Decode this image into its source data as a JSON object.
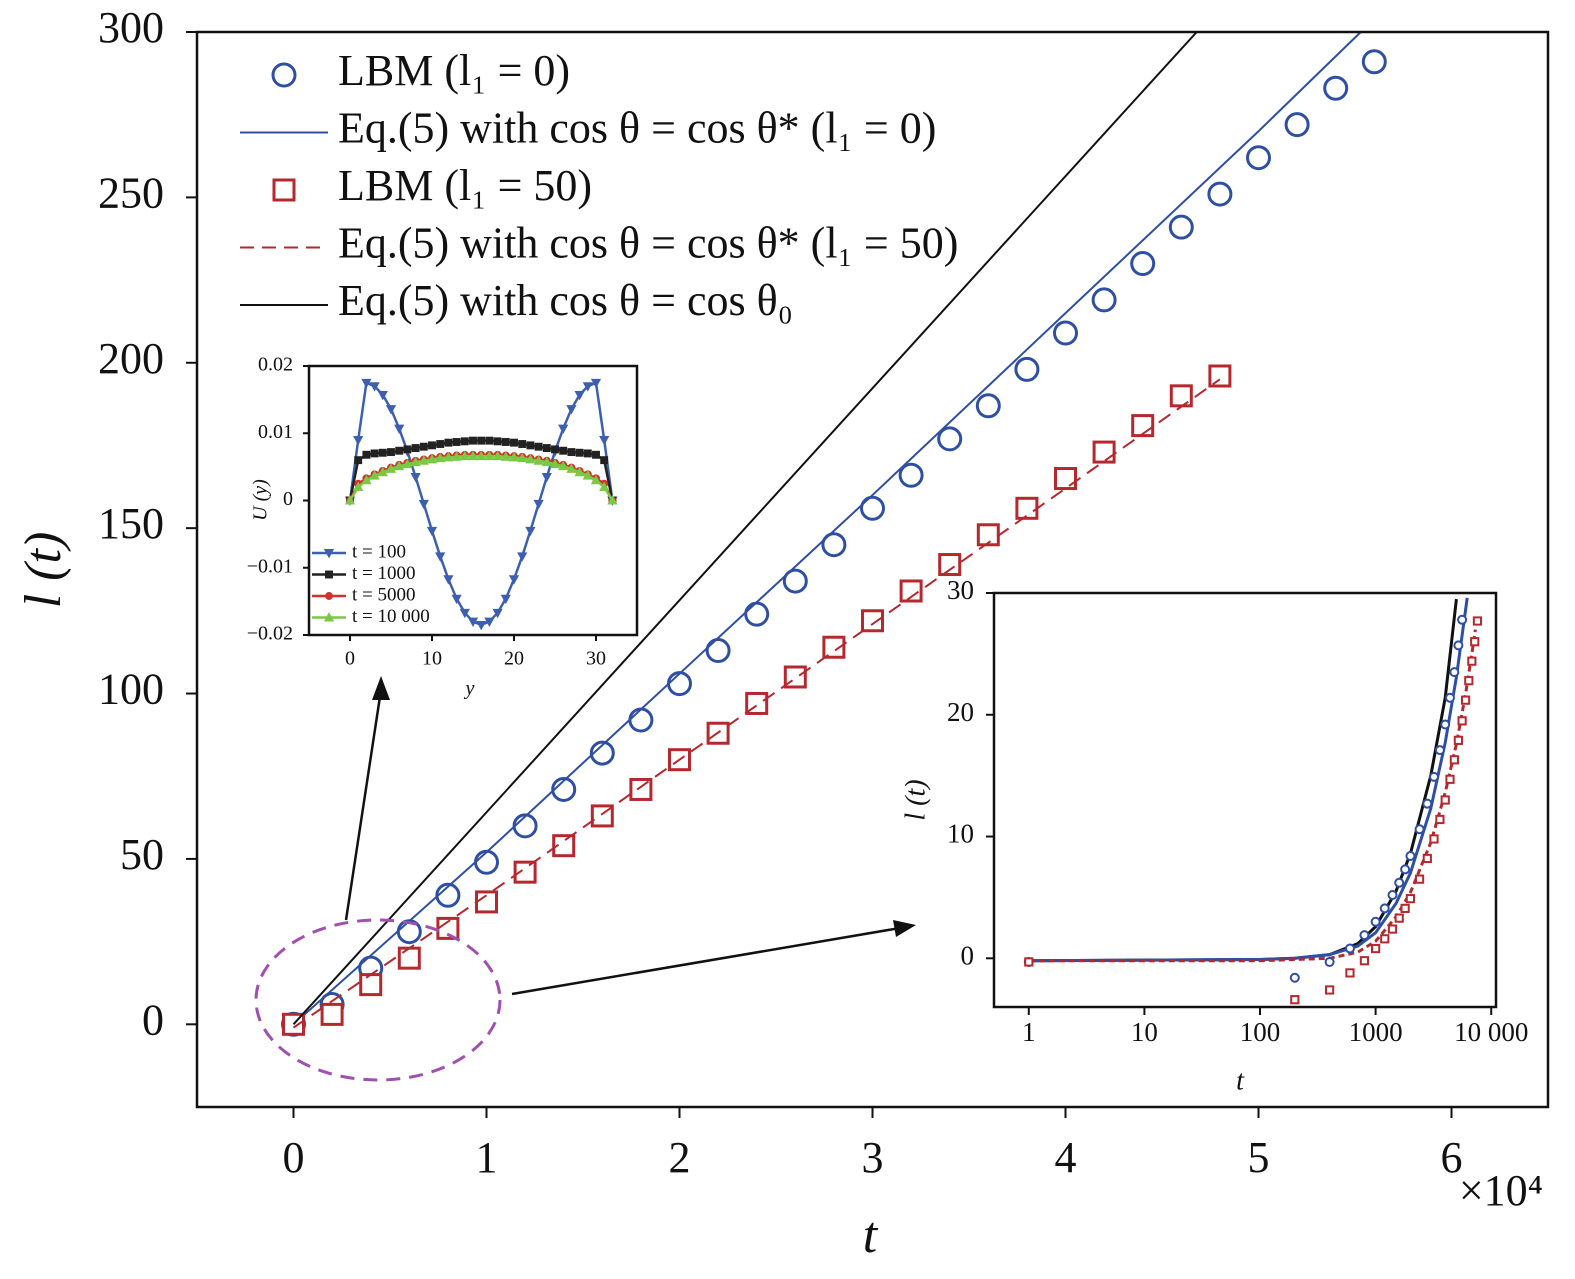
{
  "chart_data": [
    {
      "type": "line",
      "xlabel": "t",
      "ylabel": "l (t)",
      "x_multiplier": "×10⁴",
      "xlim": [
        -0.5,
        6.5
      ],
      "ylim": [
        -25,
        300
      ],
      "xticks": [
        0,
        1,
        2,
        3,
        4,
        5,
        6
      ],
      "yticks": [
        0,
        50,
        100,
        150,
        200,
        250,
        300
      ],
      "series": [
        {
          "name": "LBM (l₁ = 0)",
          "color": "#2e4fa3",
          "mode": "markers",
          "marker": "circle",
          "x": [
            0,
            0.2,
            0.4,
            0.6,
            0.8,
            1.0,
            1.2,
            1.4,
            1.6,
            1.8,
            2.0,
            2.2,
            2.4,
            2.6,
            2.8,
            3.0,
            3.2,
            3.4,
            3.6,
            3.8,
            4.0,
            4.2,
            4.4,
            4.6,
            4.8,
            5.0,
            5.2,
            5.4,
            5.6
          ],
          "values": [
            0,
            6,
            17,
            28,
            39,
            49,
            60,
            71,
            82,
            92,
            103,
            113,
            124,
            134,
            145,
            156,
            166,
            177,
            187,
            198,
            209,
            219,
            230,
            241,
            251,
            262,
            272,
            283,
            291
          ]
        },
        {
          "name": "Eq.(5) with cos θ = cos θ* (l₁ = 0)",
          "color": "#2e4fa3",
          "mode": "line",
          "dash": false,
          "x": [
            0,
            1,
            2,
            3,
            4,
            5,
            5.53
          ],
          "values": [
            0,
            52,
            106,
            160,
            215,
            270,
            300
          ]
        },
        {
          "name": "LBM (l₁ = 50)",
          "color": "#b5282e",
          "mode": "markers",
          "marker": "square",
          "x": [
            0,
            0.2,
            0.4,
            0.6,
            0.8,
            1.0,
            1.2,
            1.4,
            1.6,
            1.8,
            2.0,
            2.2,
            2.4,
            2.6,
            2.8,
            3.0,
            3.2,
            3.4,
            3.6,
            3.8,
            4.0,
            4.2,
            4.4,
            4.6,
            4.8
          ],
          "values": [
            0,
            3,
            12,
            20,
            29,
            37,
            46,
            54,
            63,
            71,
            80,
            88,
            97,
            105,
            114,
            122,
            131,
            139,
            148,
            156,
            165,
            173,
            181,
            190,
            196
          ]
        },
        {
          "name": "Eq.(5) with cos θ = cos θ* (l₁ = 50)",
          "color": "#b5282e",
          "mode": "line",
          "dash": true,
          "x": [
            0,
            1,
            2,
            3,
            4,
            4.8
          ],
          "values": [
            -1,
            39,
            80,
            121,
            162,
            195
          ]
        },
        {
          "name": "Eq.(5) with cos θ = cos θ₀",
          "color": "#111111",
          "mode": "line",
          "dash": false,
          "x": [
            0,
            4.68
          ],
          "values": [
            0,
            300
          ]
        }
      ]
    },
    {
      "type": "line",
      "xlabel": "y",
      "ylabel": "U (y)",
      "xlim": [
        -5,
        35
      ],
      "ylim": [
        -0.02,
        0.02
      ],
      "xticks": [
        0,
        10,
        20,
        30
      ],
      "yticks": [
        {
          "value": -0.02,
          "label": "−0.02"
        },
        {
          "value": -0.01,
          "label": "−0.01"
        },
        0,
        0.01,
        0.02
      ],
      "series": [
        {
          "name": "t = 100",
          "color": "#3d5fb0",
          "mode": "lines+markers",
          "marker": "triangle-down",
          "x": [
            0,
            1,
            2,
            3,
            4,
            5,
            6,
            7,
            8,
            9,
            10,
            11,
            12,
            13,
            14,
            15,
            16,
            17,
            18,
            19,
            20,
            21,
            22,
            23,
            24,
            25,
            26,
            27,
            28,
            29,
            30,
            31,
            32
          ],
          "values": [
            0,
            0.009,
            0.0175,
            0.017,
            0.0157,
            0.0136,
            0.0107,
            0.0073,
            0.0035,
            -0.0005,
            -0.0045,
            -0.0083,
            -0.0117,
            -0.0146,
            -0.0167,
            -0.018,
            -0.0185,
            -0.018,
            -0.0167,
            -0.0146,
            -0.0117,
            -0.0083,
            -0.0045,
            -0.0005,
            0.0035,
            0.0073,
            0.0107,
            0.0136,
            0.0157,
            0.017,
            0.0175,
            0.009,
            0
          ]
        },
        {
          "name": "t = 1000",
          "color": "#222222",
          "mode": "lines+markers",
          "marker": "square",
          "x": [
            0,
            1,
            2,
            3,
            4,
            5,
            6,
            7,
            8,
            9,
            10,
            11,
            12,
            13,
            14,
            15,
            16,
            17,
            18,
            19,
            20,
            21,
            22,
            23,
            24,
            25,
            26,
            27,
            28,
            29,
            30,
            31,
            32
          ],
          "values": [
            0,
            0.006,
            0.0068,
            0.007,
            0.0071,
            0.0072,
            0.0074,
            0.0076,
            0.0078,
            0.008,
            0.0082,
            0.0084,
            0.0086,
            0.0087,
            0.0088,
            0.0089,
            0.0089,
            0.0089,
            0.0088,
            0.0087,
            0.0086,
            0.0084,
            0.0082,
            0.008,
            0.0078,
            0.0076,
            0.0074,
            0.0072,
            0.0071,
            0.007,
            0.0068,
            0.006,
            0
          ]
        },
        {
          "name": "t = 5000",
          "color": "#d43030",
          "mode": "lines+markers",
          "marker": "circle",
          "x": [
            0,
            1,
            2,
            3,
            4,
            5,
            6,
            7,
            8,
            9,
            10,
            11,
            12,
            13,
            14,
            15,
            16,
            17,
            18,
            19,
            20,
            21,
            22,
            23,
            24,
            25,
            26,
            27,
            28,
            29,
            30,
            31,
            32
          ],
          "values": [
            0,
            0.0025,
            0.0033,
            0.0039,
            0.0044,
            0.0049,
            0.0053,
            0.0056,
            0.0059,
            0.0061,
            0.0063,
            0.0065,
            0.0066,
            0.0067,
            0.0068,
            0.0068,
            0.0068,
            0.0068,
            0.0068,
            0.0067,
            0.0066,
            0.0065,
            0.0063,
            0.0061,
            0.0059,
            0.0056,
            0.0053,
            0.0049,
            0.0044,
            0.0039,
            0.0033,
            0.0025,
            0
          ]
        },
        {
          "name": "t = 10 000",
          "color": "#7ac943",
          "mode": "lines+markers",
          "marker": "triangle-up",
          "x": [
            0,
            1,
            2,
            3,
            4,
            5,
            6,
            7,
            8,
            9,
            10,
            11,
            12,
            13,
            14,
            15,
            16,
            17,
            18,
            19,
            20,
            21,
            22,
            23,
            24,
            25,
            26,
            27,
            28,
            29,
            30,
            31,
            32
          ],
          "values": [
            0,
            0.002,
            0.003,
            0.0037,
            0.0042,
            0.0047,
            0.0051,
            0.0054,
            0.0057,
            0.0059,
            0.0061,
            0.0063,
            0.0064,
            0.0065,
            0.0066,
            0.0066,
            0.0066,
            0.0066,
            0.0066,
            0.0065,
            0.0064,
            0.0063,
            0.0061,
            0.0059,
            0.0057,
            0.0054,
            0.0051,
            0.0047,
            0.0042,
            0.0037,
            0.003,
            0.002,
            0
          ]
        }
      ]
    },
    {
      "type": "line",
      "xscale": "log",
      "xlabel": "t",
      "ylabel": "l (t)",
      "xlim": [
        0.5,
        11000
      ],
      "ylim": [
        -4,
        30
      ],
      "xticks": [
        1,
        10,
        100,
        1000,
        {
          "value": 10000,
          "label": "10 000"
        }
      ],
      "yticks": [
        0,
        10,
        20,
        30
      ],
      "series": [
        {
          "color": "#111111",
          "mode": "line",
          "dash": false,
          "x": [
            1,
            100,
            200,
            400,
            700,
            1000,
            1500,
            2000,
            3000,
            4000,
            5000
          ],
          "values": [
            -0.2,
            -0.1,
            0,
            0.3,
            1.2,
            2.6,
            5.5,
            8.6,
            15,
            21.4,
            29.5
          ]
        },
        {
          "color": "#2e4fa3",
          "mode": "line",
          "dash": false,
          "x": [
            1,
            100,
            200,
            400,
            700,
            1000,
            1500,
            2000,
            3000,
            4000,
            5000,
            6200
          ],
          "values": [
            -0.2,
            -0.1,
            0,
            0.3,
            1,
            2.1,
            4.5,
            7,
            12.3,
            17.7,
            23.1,
            29.6
          ]
        },
        {
          "color": "#b5282e",
          "mode": "line",
          "dash": true,
          "x": [
            1,
            100,
            200,
            400,
            700,
            1000,
            1500,
            2000,
            3000,
            4000,
            5000,
            6000,
            7000,
            7300
          ],
          "values": [
            -0.2,
            -0.2,
            -0.1,
            0,
            0.5,
            1.4,
            3.4,
            5.4,
            9.5,
            13.6,
            17.6,
            21.7,
            25.8,
            27
          ]
        },
        {
          "color": "#2e4fa3",
          "mode": "markers",
          "marker": "circle",
          "x": [
            1,
            200,
            400,
            600,
            800,
            1000,
            1200,
            1400,
            1600,
            1800,
            2000,
            2400,
            2800,
            3200,
            3600,
            4000,
            4400,
            4800,
            5200,
            5600
          ],
          "values": [
            -0.3,
            -1.6,
            -0.3,
            0.8,
            1.9,
            3.0,
            4.1,
            5.2,
            6.2,
            7.3,
            8.4,
            10.6,
            12.7,
            14.9,
            17.1,
            19.2,
            21.4,
            23.5,
            25.7,
            27.8
          ]
        },
        {
          "color": "#b5282e",
          "mode": "markers",
          "marker": "square",
          "x": [
            1,
            200,
            400,
            600,
            800,
            1000,
            1200,
            1400,
            1600,
            1800,
            2000,
            2400,
            2800,
            3200,
            3600,
            4000,
            4400,
            4800,
            5200,
            5600,
            6000,
            6400,
            6800,
            7200,
            7600
          ],
          "values": [
            -0.3,
            -3.4,
            -2.6,
            -1.2,
            -0.2,
            0.8,
            1.6,
            2.4,
            3.3,
            4.1,
            4.9,
            6.5,
            8.2,
            9.8,
            11.4,
            13.0,
            14.7,
            16.3,
            17.9,
            19.5,
            21.2,
            22.8,
            24.4,
            26.0,
            27.7
          ]
        }
      ]
    }
  ]
}
